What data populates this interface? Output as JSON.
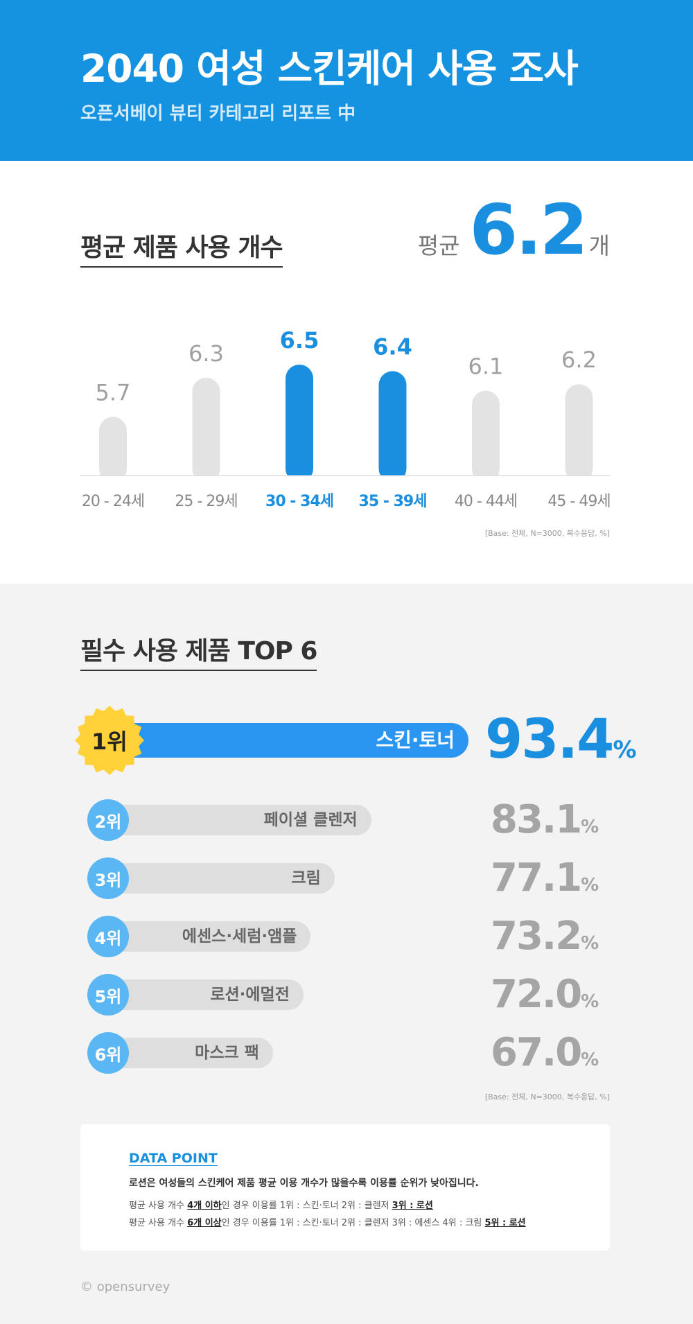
{
  "header": {
    "title": "2040 여성 스킨케어 사용 조사",
    "subtitle": "오픈서베이 뷰티 카테고리 리포트 中"
  },
  "section1": {
    "title": "평균 제품 사용 개수",
    "avg_prefix": "평균",
    "avg_value": "6.2",
    "avg_unit": "개",
    "base_note": "[Base: 전체, N=3000, 복수응답, %]"
  },
  "chart_data": [
    {
      "type": "bar",
      "title": "평균 제품 사용 개수",
      "categories": [
        "20 - 24세",
        "25 - 29세",
        "30 - 34세",
        "35 - 39세",
        "40 - 44세",
        "45 - 49세"
      ],
      "values": [
        5.7,
        6.3,
        6.5,
        6.4,
        6.1,
        6.2
      ],
      "highlighted": [
        false,
        false,
        true,
        true,
        false,
        false
      ],
      "colors": {
        "highlight": "#1a8fdf",
        "normal": "#e3e3e3",
        "label_normal": "#a0a0a0"
      },
      "ylim": [
        4.8,
        6.5
      ],
      "grid": false
    },
    {
      "type": "bar",
      "orientation": "horizontal",
      "title": "필수 사용 제품 TOP 6",
      "categories": [
        "스킨·토너",
        "페이셜 클렌저",
        "크림",
        "에센스·세럼·앰플",
        "로션·에멀전",
        "마스크 팩"
      ],
      "ranks": [
        "1위",
        "2위",
        "3위",
        "4위",
        "5위",
        "6위"
      ],
      "values": [
        93.4,
        83.1,
        77.1,
        73.2,
        72.0,
        67.0
      ],
      "value_labels": [
        "93.4",
        "83.1",
        "77.1",
        "73.2",
        "72.0",
        "67.0"
      ],
      "unit": "%",
      "colors": {
        "first_bar": "#2a96f2",
        "bar": "#dedede",
        "badge": "#5ab7f3",
        "star": "#ffd23a"
      }
    }
  ],
  "section2": {
    "title": "필수 사용 제품 TOP 6",
    "base_note": "[Base: 전체, N=3000, 복수응답, %]"
  },
  "data_point": {
    "title": "DATA POINT",
    "line1": "로션은 여성들의 스킨케어 제품 평균 이용 개수가 많을수록 이용률 순위가 낮아집니다.",
    "line2": {
      "pre": "평균 사용 개수 ",
      "em": "4개 이하",
      "mid": "인 경우 이용률  1위 : 스킨·토너   2위 : 클렌저   ",
      "em2": "3위 : 로션"
    },
    "line3": {
      "pre": "평균 사용 개수 ",
      "em": "6개 이상",
      "mid": "인 경우 이용률  1위 : 스킨·토너   2위 : 클렌저   3위 : 에센스   4위 : 크림   ",
      "em2": "5위 : 로션"
    }
  },
  "footer": {
    "logo": "opensurvey"
  }
}
